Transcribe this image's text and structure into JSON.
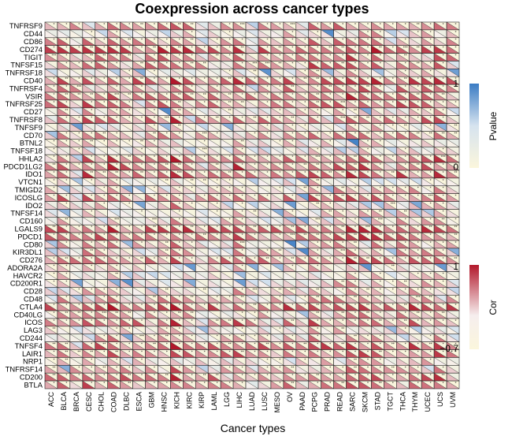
{
  "chart_data": {
    "type": "heatmap",
    "title": "Coexpression across cancer types",
    "xlabel": "Cancer types",
    "ylabel": "",
    "rows": [
      "TNFRSF9",
      "CD44",
      "CD86",
      "CD274",
      "TIGIT",
      "TNFSF15",
      "TNFRSF18",
      "CD40",
      "TNFRSF4",
      "VSIR",
      "TNFRSF25",
      "CD27",
      "TNFRSF8",
      "TNFSF9",
      "CD70",
      "BTNL2",
      "TNFSF18",
      "HHLA2",
      "PDCD1LG2",
      "IDO1",
      "VTCN1",
      "TMIGD2",
      "ICOSLG",
      "IDO2",
      "TNFSF14",
      "CD160",
      "LGALS9",
      "PDCD1",
      "CD80",
      "KIR3DL1",
      "CD276",
      "ADORA2A",
      "HAVCR2",
      "CD200R1",
      "CD28",
      "CD48",
      "CTLA4",
      "CD40LG",
      "ICOS",
      "LAG3",
      "CD244",
      "TNFSF4",
      "LAIR1",
      "NRP1",
      "TNFRSF14",
      "CD200",
      "BTLA"
    ],
    "columns": [
      "ACC",
      "BLCA",
      "BRCA",
      "CESC",
      "CHOL",
      "COAD",
      "DLBC",
      "ESCA",
      "GBM",
      "HNSC",
      "KICH",
      "KIRC",
      "KIRP",
      "LAML",
      "LGG",
      "LIHC",
      "LUAD",
      "LUSC",
      "MESO",
      "OV",
      "PAAD",
      "PCPG",
      "PRAD",
      "READ",
      "SARC",
      "SKCM",
      "STAD",
      "TGCT",
      "THCA",
      "THYM",
      "UCEC",
      "UCS",
      "UVM"
    ],
    "cell_style": "split diagonal: lower-left triangle = Cor, upper-right triangle = Pvalue, stars = significance",
    "legends": [
      {
        "name": "Pvalue",
        "range": [
          0,
          1
        ],
        "ticks": [
          "1",
          "0"
        ],
        "colors": [
          "#3b7cc4",
          "#d6e3ef",
          "#fbf6dc"
        ]
      },
      {
        "name": "Cor",
        "range": [
          -0.7,
          1
        ],
        "ticks": [
          "1",
          "−0.7"
        ],
        "colors": [
          "#b2182b",
          "#f6eeee",
          "#fbf6dc"
        ]
      }
    ],
    "legend_placement": "right",
    "grid": true
  }
}
